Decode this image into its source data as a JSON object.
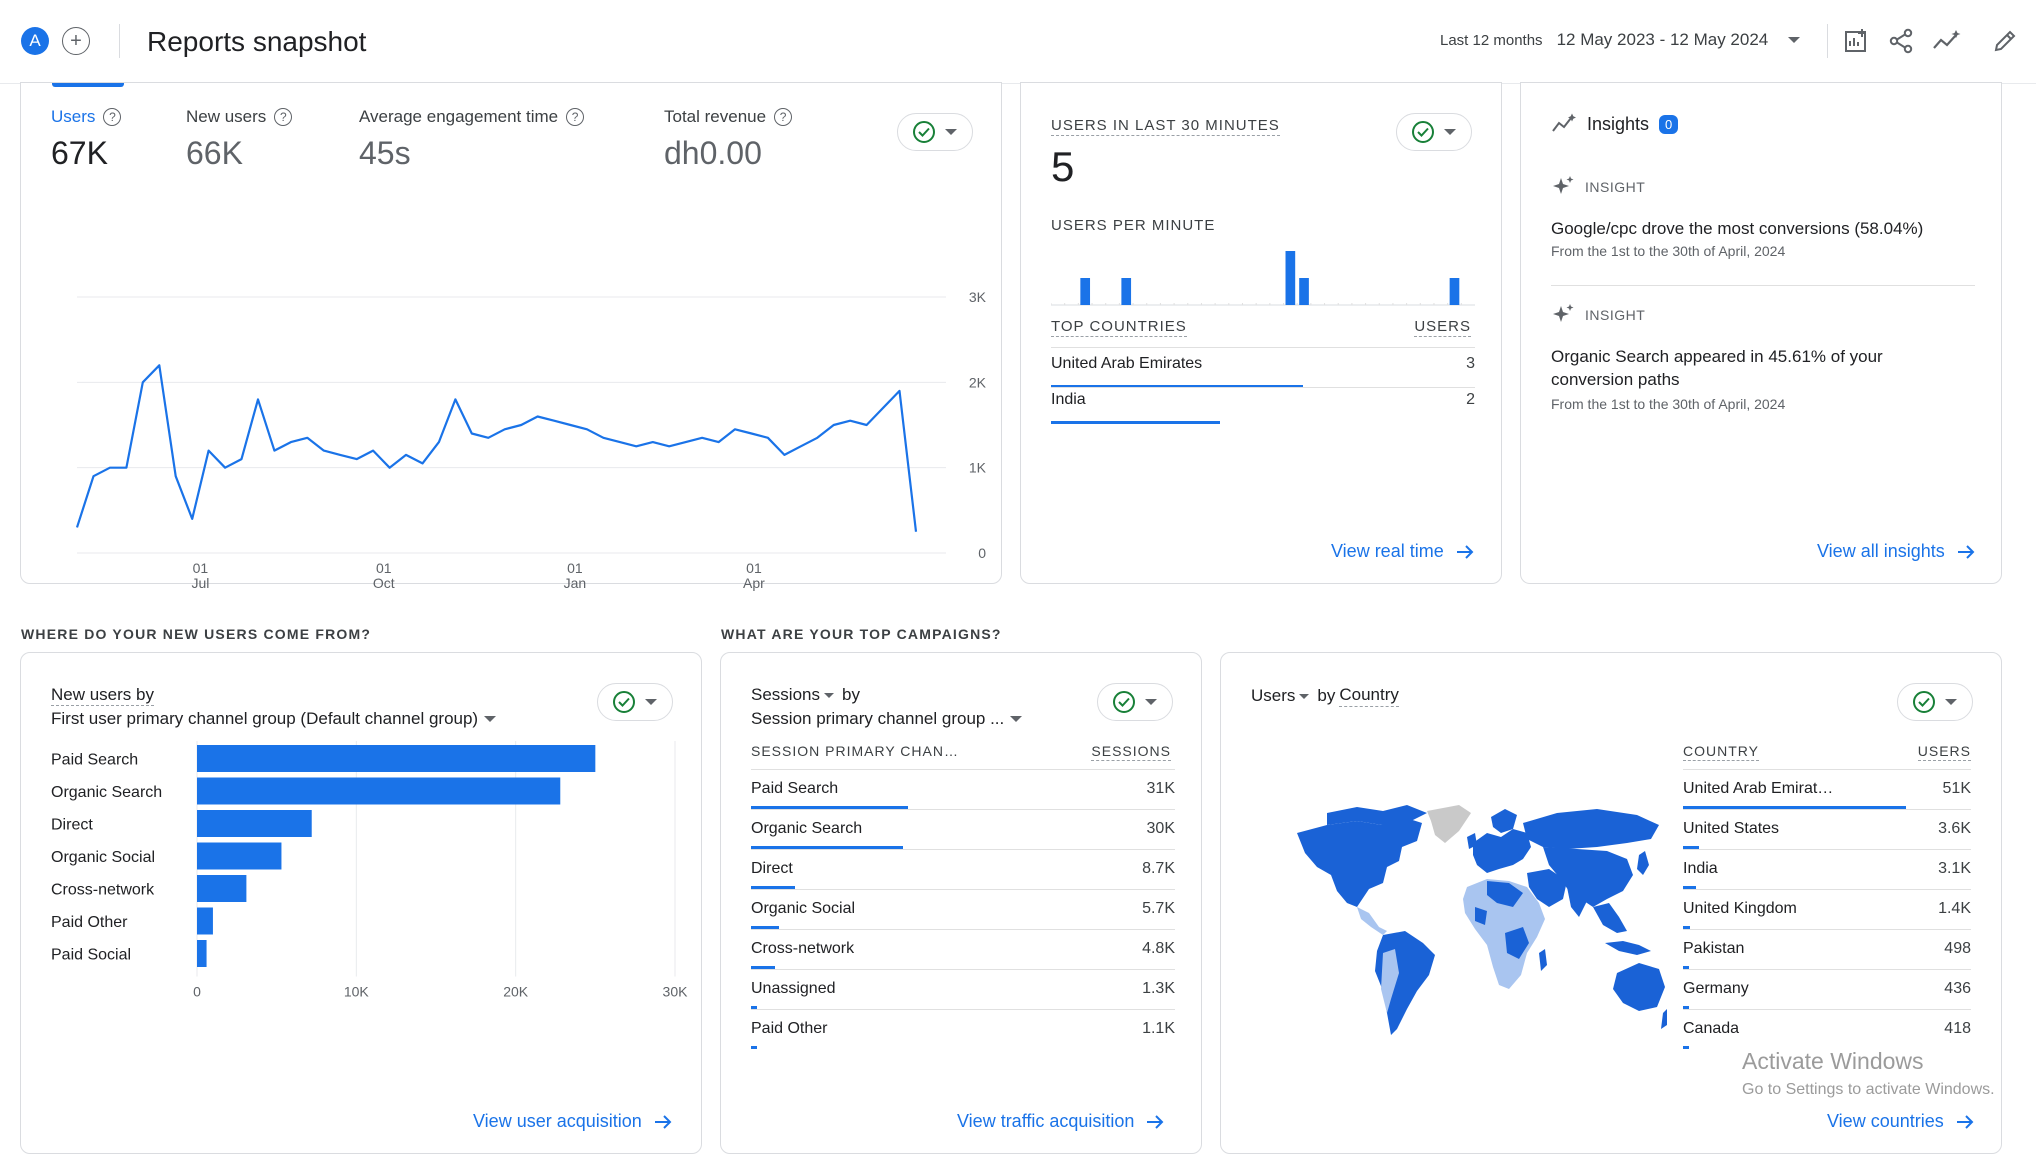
{
  "header": {
    "avatar_letter": "A",
    "add_symbol": "+",
    "title": "Reports snapshot",
    "range_label": "Last 12 months",
    "date_range": "12 May 2023 - 12 May 2024",
    "icons": [
      "add-to-report-icon",
      "share-icon",
      "insights-trend-icon",
      "edit-pencil-icon"
    ]
  },
  "overview": {
    "metrics": [
      {
        "label": "Users",
        "value": "67K"
      },
      {
        "label": "New users",
        "value": "66K"
      },
      {
        "label": "Average engagement time",
        "value": "45s"
      },
      {
        "label": "Total revenue",
        "value": "dh0.00"
      }
    ],
    "chart_data": {
      "type": "line",
      "title": "",
      "xlabel": "",
      "ylabel": "",
      "ylim": [
        0,
        3000
      ],
      "y_ticks": [
        "3K",
        "2K",
        "1K",
        "0"
      ],
      "x_ticks": [
        {
          "day": "01",
          "month": "Jul"
        },
        {
          "day": "01",
          "month": "Oct"
        },
        {
          "day": "01",
          "month": "Jan"
        },
        {
          "day": "01",
          "month": "Apr"
        }
      ],
      "series": [
        {
          "name": "Users",
          "color": "#1a73e8",
          "values": [
            300,
            900,
            1000,
            1000,
            2000,
            2200,
            900,
            400,
            1200,
            1000,
            1100,
            1800,
            1200,
            1300,
            1350,
            1200,
            1150,
            1100,
            1200,
            1000,
            1150,
            1050,
            1300,
            1800,
            1400,
            1350,
            1450,
            1500,
            1600,
            1550,
            1500,
            1450,
            1350,
            1300,
            1250,
            1300,
            1250,
            1300,
            1350,
            1300,
            1450,
            1400,
            1350,
            1150,
            1250,
            1350,
            1500,
            1550,
            1500,
            1700,
            1900,
            250
          ]
        }
      ]
    }
  },
  "realtime": {
    "title": "USERS IN LAST 30 MINUTES",
    "value": "5",
    "per_minute_label": "USERS PER MINUTE",
    "chart_data": {
      "type": "bar",
      "title": "",
      "values": [
        0,
        0,
        1,
        0,
        0,
        1,
        0,
        0,
        0,
        0,
        0,
        0,
        0,
        0,
        0,
        0,
        0,
        2,
        1,
        0,
        0,
        0,
        0,
        0,
        0,
        0,
        0,
        0,
        0,
        1,
        0
      ],
      "ylim": [
        0,
        2
      ]
    },
    "countries_header": "TOP COUNTRIES",
    "users_header": "USERS",
    "countries": [
      {
        "name": "United Arab Emirates",
        "value": "3",
        "fraction": 1.0
      },
      {
        "name": "India",
        "value": "2",
        "fraction": 0.67
      }
    ],
    "link": "View real time"
  },
  "insights": {
    "title": "Insights",
    "badge": "0",
    "items": [
      {
        "tag": "INSIGHT",
        "text": "Google/cpc drove the most conversions (58.04%)",
        "sub": "From the 1st to the 30th of April, 2024"
      },
      {
        "tag": "INSIGHT",
        "text_line1": "Organic Search appeared in 45.61% of your",
        "text_line2": "conversion paths",
        "sub": "From the 1st to the 30th of April, 2024"
      }
    ],
    "link": "View all insights"
  },
  "sections": {
    "new_users_q": "WHERE DO YOUR NEW USERS COME FROM?",
    "campaigns_q": "WHAT ARE YOUR TOP CAMPAIGNS?"
  },
  "acquisition": {
    "title_line1": "New users by",
    "title_line2": "First user primary channel group (Default channel group)",
    "chart_data": {
      "type": "bar",
      "orientation": "horizontal",
      "title": "",
      "categories": [
        "Paid Search",
        "Organic Search",
        "Direct",
        "Organic Social",
        "Cross-network",
        "Paid Other",
        "Paid Social"
      ],
      "values": [
        25000,
        22800,
        7200,
        5300,
        3100,
        1000,
        600
      ],
      "xlim": [
        0,
        30000
      ],
      "x_ticks": [
        "0",
        "10K",
        "20K",
        "30K"
      ]
    },
    "link": "View user acquisition"
  },
  "traffic": {
    "title_line1": "Sessions",
    "title_by": "by",
    "title_line2": "Session primary channel group ...",
    "col1": "SESSION PRIMARY CHAN…",
    "col2": "SESSIONS",
    "rows": [
      {
        "name": "Paid Search",
        "value": "31K",
        "fraction": 1.0
      },
      {
        "name": "Organic Search",
        "value": "30K",
        "fraction": 0.97
      },
      {
        "name": "Direct",
        "value": "8.7K",
        "fraction": 0.28
      },
      {
        "name": "Organic Social",
        "value": "5.7K",
        "fraction": 0.18
      },
      {
        "name": "Cross-network",
        "value": "4.8K",
        "fraction": 0.15
      },
      {
        "name": "Unassigned",
        "value": "1.3K",
        "fraction": 0.04
      },
      {
        "name": "Paid Other",
        "value": "1.1K",
        "fraction": 0.035
      }
    ],
    "link": "View traffic acquisition"
  },
  "countries_card": {
    "title_users": "Users",
    "title_by": "by",
    "title_dim": "Country",
    "col1": "COUNTRY",
    "col2": "USERS",
    "rows": [
      {
        "name": "United Arab Emirat…",
        "value": "51K",
        "fraction": 1.0
      },
      {
        "name": "United States",
        "value": "3.6K",
        "fraction": 0.07
      },
      {
        "name": "India",
        "value": "3.1K",
        "fraction": 0.06
      },
      {
        "name": "United Kingdom",
        "value": "1.4K",
        "fraction": 0.03
      },
      {
        "name": "Pakistan",
        "value": "498",
        "fraction": 0.01
      },
      {
        "name": "Germany",
        "value": "436",
        "fraction": 0.009
      },
      {
        "name": "Canada",
        "value": "418",
        "fraction": 0.008
      }
    ],
    "link": "View countries"
  },
  "watermark": {
    "line1": "Activate Windows",
    "line2": "Go to Settings to activate Windows."
  },
  "colors": {
    "accent": "#1a73e8",
    "success": "#188038",
    "map_dark": "#1a62d6",
    "map_light": "#a9c5f0",
    "map_gray": "#c9c9c9"
  }
}
